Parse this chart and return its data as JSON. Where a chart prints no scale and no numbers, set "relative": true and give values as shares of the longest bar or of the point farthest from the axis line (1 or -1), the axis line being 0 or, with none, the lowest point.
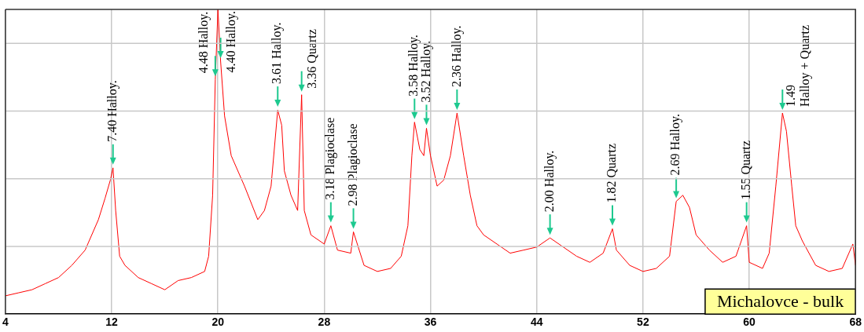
{
  "chart_data": {
    "type": "line",
    "title": "Michalovce - bulk",
    "relative": true,
    "grid": true,
    "legend": false,
    "marker": "none",
    "line_style": "solid",
    "xlim": [
      4,
      68
    ],
    "xticks": [
      4,
      12,
      20,
      28,
      36,
      44,
      52,
      60,
      68
    ],
    "series": [
      {
        "color": "#ff0000",
        "x": [
          4,
          5,
          6,
          7,
          8,
          9,
          10,
          11,
          11.5,
          11.9,
          12.1,
          12.3,
          12.6,
          13,
          14,
          15,
          16,
          17,
          18,
          19,
          19.3,
          19.6,
          19.8,
          20,
          20.2,
          20.5,
          21,
          22,
          23,
          23.5,
          24,
          24.5,
          24.8,
          25,
          25.5,
          26,
          26.3,
          26.5,
          27,
          28,
          28.5,
          29,
          30,
          30.2,
          31,
          32,
          33,
          33.8,
          34.3,
          34.6,
          34.8,
          35.2,
          35.5,
          35.7,
          36,
          36.5,
          37,
          37.5,
          38,
          38.5,
          39,
          39.5,
          40,
          41,
          42,
          43,
          44,
          45,
          46,
          47,
          48,
          49,
          49.7,
          50,
          51,
          52,
          53,
          54,
          54.5,
          55,
          55.5,
          56,
          57,
          58,
          59,
          59.8,
          60,
          61,
          61.5,
          62,
          62.5,
          62.8,
          63.2,
          63.5,
          64,
          65,
          66,
          67,
          67.8,
          68
        ],
        "values": [
          0.06,
          0.07,
          0.08,
          0.1,
          0.12,
          0.16,
          0.21,
          0.31,
          0.38,
          0.44,
          0.48,
          0.34,
          0.19,
          0.16,
          0.12,
          0.1,
          0.08,
          0.11,
          0.12,
          0.14,
          0.19,
          0.39,
          0.77,
          1,
          0.83,
          0.65,
          0.52,
          0.42,
          0.31,
          0.34,
          0.42,
          0.67,
          0.62,
          0.47,
          0.39,
          0.34,
          0.72,
          0.34,
          0.26,
          0.23,
          0.29,
          0.21,
          0.2,
          0.27,
          0.16,
          0.14,
          0.15,
          0.19,
          0.29,
          0.52,
          0.63,
          0.54,
          0.52,
          0.61,
          0.52,
          0.42,
          0.44,
          0.52,
          0.66,
          0.52,
          0.39,
          0.29,
          0.26,
          0.23,
          0.2,
          0.21,
          0.22,
          0.25,
          0.22,
          0.19,
          0.17,
          0.2,
          0.28,
          0.21,
          0.16,
          0.14,
          0.15,
          0.19,
          0.37,
          0.39,
          0.35,
          0.26,
          0.21,
          0.17,
          0.19,
          0.29,
          0.17,
          0.15,
          0.2,
          0.42,
          0.66,
          0.6,
          0.42,
          0.29,
          0.24,
          0.16,
          0.14,
          0.15,
          0.23,
          0.16
        ]
      }
    ],
    "annotations": [
      {
        "text": "7.40 Halloy.",
        "x": 12.1,
        "y": 0.48
      },
      {
        "text": "4.48 Halloy.",
        "x": 19.8,
        "y": 0.77
      },
      {
        "text": "4.40 Halloy.",
        "x": 20.2,
        "y": 0.83
      },
      {
        "text": "3.61 Halloy.",
        "x": 24.5,
        "y": 0.67
      },
      {
        "text": "3.36 Quartz",
        "x": 26.3,
        "y": 0.72
      },
      {
        "text": "3.18 Plagioclase",
        "x": 28.5,
        "y": 0.29
      },
      {
        "text": "2.98 Plagioclase",
        "x": 30.2,
        "y": 0.27
      },
      {
        "text": "3.58 Halloy.",
        "x": 34.8,
        "y": 0.63
      },
      {
        "text": "3.52 Halloy.",
        "x": 35.7,
        "y": 0.61
      },
      {
        "text": "2.36 Halloy.",
        "x": 38,
        "y": 0.66
      },
      {
        "text": "2.00 Halloy.",
        "x": 45,
        "y": 0.25
      },
      {
        "text": "1.82 Quartz",
        "x": 49.7,
        "y": 0.28
      },
      {
        "text": "2.69 Halloy.",
        "x": 54.5,
        "y": 0.37
      },
      {
        "text": "1.55 Quartz",
        "x": 59.8,
        "y": 0.29
      },
      {
        "text": "1.49\nHalloy + Quartz",
        "x": 62.5,
        "y": 0.66
      }
    ]
  }
}
